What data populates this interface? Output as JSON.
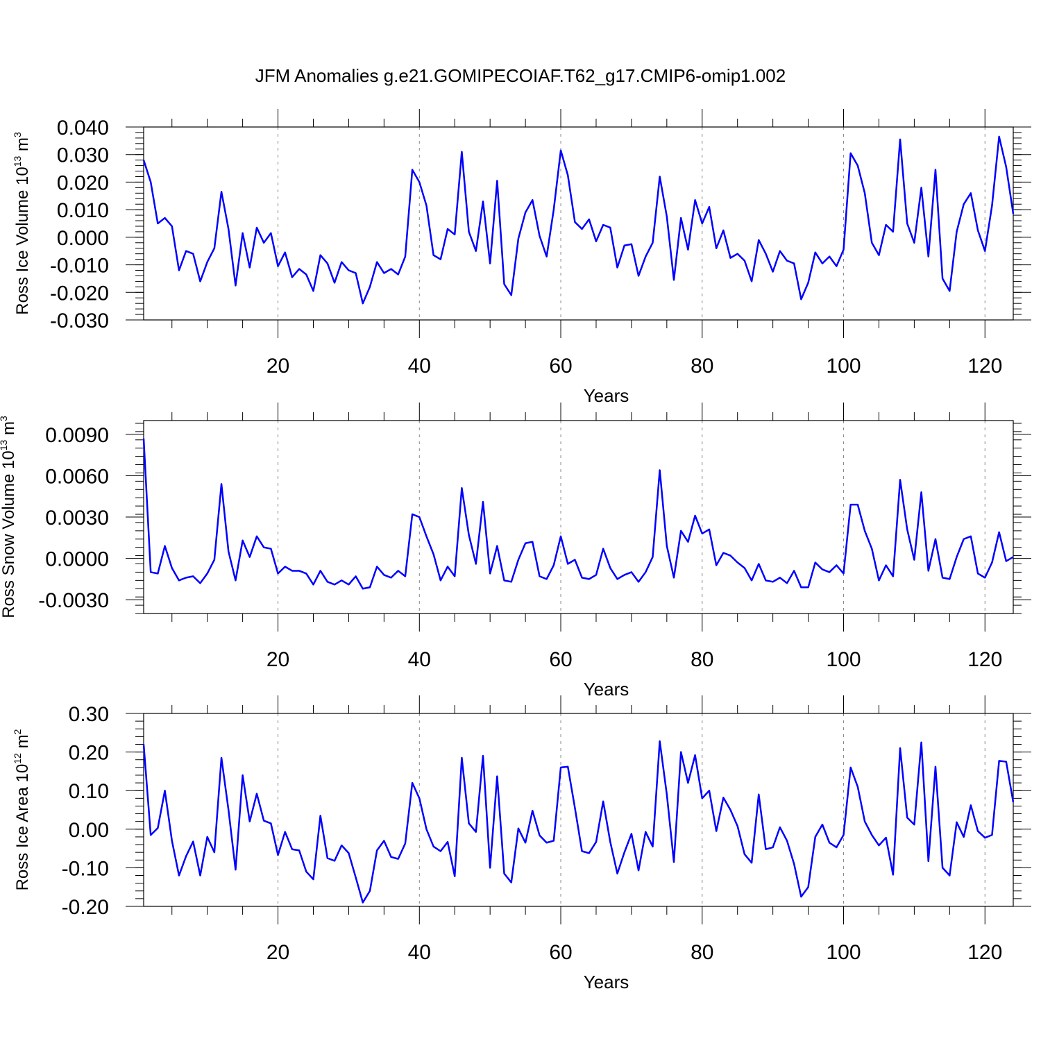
{
  "title": "JFM Anomalies g.e21.GOMIPECOIAF.T62_g17.CMIP6-omip1.002",
  "colors": {
    "line": "#0000ff",
    "grid": "#888888",
    "axis": "#000000"
  },
  "chart_data": [
    {
      "type": "line",
      "xlabel": "Years",
      "ylabel": {
        "text": "Ross Ice Volume 10",
        "exp": "13",
        "unit": " m",
        "unit_exp": "3"
      },
      "xlim": [
        1,
        124
      ],
      "ylim": [
        -0.03,
        0.04
      ],
      "xticks": [
        20,
        40,
        60,
        80,
        100,
        120
      ],
      "xtick_labels": [
        "20",
        "40",
        "60",
        "80",
        "100",
        "120"
      ],
      "yticks": [
        0.04,
        0.03,
        0.02,
        0.01,
        0.0,
        -0.01,
        -0.02,
        -0.03
      ],
      "ytick_labels": [
        "0.040",
        "0.030",
        "0.020",
        "0.010",
        "0.000",
        "-0.010",
        "-0.020",
        "-0.030"
      ],
      "grid_x": [
        20,
        40,
        60,
        80,
        100,
        120
      ],
      "series": [
        {
          "name": "Ross Ice Volume anomaly",
          "x_start": 1,
          "values": [
            0.028,
            0.02,
            0.005,
            0.007,
            0.004,
            -0.012,
            -0.005,
            -0.006,
            -0.016,
            -0.009,
            -0.004,
            0.0165,
            0.003,
            -0.0175,
            0.0015,
            -0.011,
            0.0035,
            -0.002,
            0.0015,
            -0.0105,
            -0.0055,
            -0.0145,
            -0.0115,
            -0.0135,
            -0.0195,
            -0.0065,
            -0.0095,
            -0.0165,
            -0.009,
            -0.012,
            -0.013,
            -0.024,
            -0.018,
            -0.009,
            -0.013,
            -0.0115,
            -0.0135,
            -0.007,
            0.0245,
            0.02,
            0.0115,
            -0.0065,
            -0.008,
            0.003,
            0.001,
            0.031,
            0.002,
            -0.005,
            0.013,
            -0.0095,
            0.0205,
            -0.017,
            -0.021,
            -0.0005,
            0.009,
            0.0135,
            0.0005,
            -0.007,
            0.01,
            0.0315,
            0.0225,
            0.0055,
            0.003,
            0.0065,
            -0.0015,
            0.0045,
            0.0035,
            -0.011,
            -0.003,
            -0.0025,
            -0.014,
            -0.007,
            -0.002,
            0.022,
            0.0075,
            -0.0155,
            0.007,
            -0.0045,
            0.0135,
            0.005,
            0.011,
            -0.004,
            0.0025,
            -0.0075,
            -0.006,
            -0.0085,
            -0.016,
            -0.001,
            -0.006,
            -0.0125,
            -0.005,
            -0.0085,
            -0.0095,
            -0.0225,
            -0.0165,
            -0.0055,
            -0.0095,
            -0.007,
            -0.0105,
            -0.0045,
            0.0305,
            0.026,
            0.016,
            -0.002,
            -0.0065,
            0.0045,
            0.002,
            0.0355,
            0.005,
            -0.002,
            0.018,
            -0.007,
            0.0245,
            -0.015,
            -0.0195,
            0.002,
            0.012,
            0.016,
            0.0025,
            -0.005,
            0.0115,
            0.0365,
            0.0255,
            0.0085
          ]
        }
      ]
    },
    {
      "type": "line",
      "xlabel": "Years",
      "ylabel": {
        "text": "Ross Snow Volume 10",
        "exp": "13",
        "unit": " m",
        "unit_exp": "3"
      },
      "xlim": [
        1,
        124
      ],
      "ylim": [
        -0.004,
        0.01
      ],
      "xticks": [
        20,
        40,
        60,
        80,
        100,
        120
      ],
      "xtick_labels": [
        "20",
        "40",
        "60",
        "80",
        "100",
        "120"
      ],
      "yticks": [
        0.009,
        0.006,
        0.003,
        0.0,
        -0.003
      ],
      "ytick_labels": [
        "0.0090",
        "0.0060",
        "0.0030",
        "0.0000",
        "-0.0030"
      ],
      "grid_x": [
        20,
        40,
        60,
        80,
        100,
        120
      ],
      "series": [
        {
          "name": "Ross Snow Volume anomaly",
          "x_start": 1,
          "values": [
            0.0087,
            -0.001,
            -0.0011,
            0.0009,
            -0.0007,
            -0.0016,
            -0.0014,
            -0.0013,
            -0.0018,
            -0.0011,
            -0.0001,
            0.0054,
            0.0005,
            -0.0016,
            0.0013,
            0.0001,
            0.0016,
            0.0008,
            0.0007,
            -0.0011,
            -0.0006,
            -0.0009,
            -0.0009,
            -0.0011,
            -0.0019,
            -0.0009,
            -0.0017,
            -0.0019,
            -0.0016,
            -0.0019,
            -0.0013,
            -0.0022,
            -0.0021,
            -0.0006,
            -0.0012,
            -0.0014,
            -0.0009,
            -0.0013,
            0.0032,
            0.003,
            0.0016,
            0.0003,
            -0.0016,
            -0.0006,
            -0.0013,
            0.0051,
            0.0017,
            -0.0004,
            0.0041,
            -0.0011,
            0.0009,
            -0.0016,
            -0.0017,
            -0.0001,
            0.0011,
            0.0012,
            -0.0013,
            -0.0015,
            -0.0005,
            0.0016,
            -0.0004,
            -0.0001,
            -0.0014,
            -0.0015,
            -0.0012,
            0.0007,
            -0.0007,
            -0.0015,
            -0.0012,
            -0.001,
            -0.0017,
            -0.001,
            0.0001,
            0.0064,
            0.0009,
            -0.0014,
            0.002,
            0.0012,
            0.0031,
            0.0018,
            0.0021,
            -0.0005,
            0.0004,
            0.0002,
            -0.0003,
            -0.0007,
            -0.0016,
            -0.0004,
            -0.0016,
            -0.0017,
            -0.0014,
            -0.0018,
            -0.0009,
            -0.0021,
            -0.0021,
            -0.0003,
            -0.0008,
            -0.001,
            -0.0005,
            -0.0011,
            0.0039,
            0.0039,
            0.002,
            0.0007,
            -0.0016,
            -0.0005,
            -0.0013,
            0.0057,
            0.0021,
            -0.0001,
            0.0048,
            -0.0009,
            0.0014,
            -0.0014,
            -0.0015,
            0.0001,
            0.0014,
            0.0016,
            -0.0011,
            -0.0014,
            -0.0003,
            0.0019,
            -0.0002,
            0.0001
          ]
        }
      ]
    },
    {
      "type": "line",
      "xlabel": "Years",
      "ylabel": {
        "text": "Ross Ice Area 10",
        "exp": "12",
        "unit": " m",
        "unit_exp": "2"
      },
      "xlim": [
        1,
        124
      ],
      "ylim": [
        -0.2,
        0.3
      ],
      "xticks": [
        20,
        40,
        60,
        80,
        100,
        120
      ],
      "xtick_labels": [
        "20",
        "40",
        "60",
        "80",
        "100",
        "120"
      ],
      "yticks": [
        0.3,
        0.2,
        0.1,
        0.0,
        -0.1,
        -0.2
      ],
      "ytick_labels": [
        "0.30",
        "0.20",
        "0.10",
        "0.00",
        "-0.10",
        "-0.20"
      ],
      "grid_x": [
        20,
        40,
        60,
        80,
        100,
        120
      ],
      "series": [
        {
          "name": "Ross Ice Area anomaly",
          "x_start": 1,
          "values": [
            0.22,
            -0.015,
            0.003,
            0.1,
            -0.03,
            -0.12,
            -0.07,
            -0.032,
            -0.12,
            -0.02,
            -0.06,
            0.185,
            0.05,
            -0.105,
            0.14,
            0.02,
            0.092,
            0.022,
            0.015,
            -0.067,
            -0.007,
            -0.052,
            -0.055,
            -0.11,
            -0.13,
            0.035,
            -0.075,
            -0.082,
            -0.042,
            -0.062,
            -0.125,
            -0.19,
            -0.16,
            -0.055,
            -0.03,
            -0.072,
            -0.077,
            -0.037,
            0.12,
            0.08,
            0.0,
            -0.045,
            -0.057,
            -0.033,
            -0.122,
            0.185,
            0.015,
            -0.007,
            0.19,
            -0.1,
            0.137,
            -0.115,
            -0.138,
            0.002,
            -0.035,
            0.048,
            -0.016,
            -0.035,
            -0.03,
            0.16,
            0.162,
            0.055,
            -0.057,
            -0.062,
            -0.033,
            0.072,
            -0.033,
            -0.115,
            -0.06,
            -0.012,
            -0.107,
            -0.007,
            -0.045,
            0.228,
            0.09,
            -0.085,
            0.2,
            0.12,
            0.192,
            0.08,
            0.1,
            -0.005,
            0.082,
            0.05,
            0.008,
            -0.065,
            -0.087,
            0.09,
            -0.052,
            -0.047,
            0.005,
            -0.03,
            -0.09,
            -0.175,
            -0.15,
            -0.02,
            0.012,
            -0.035,
            -0.047,
            -0.015,
            0.16,
            0.11,
            0.02,
            -0.015,
            -0.042,
            -0.022,
            -0.118,
            0.21,
            0.03,
            0.012,
            0.225,
            -0.083,
            0.162,
            -0.1,
            -0.12,
            0.018,
            -0.02,
            0.062,
            -0.005,
            -0.022,
            -0.015,
            0.177,
            0.175,
            0.07
          ]
        }
      ]
    }
  ]
}
